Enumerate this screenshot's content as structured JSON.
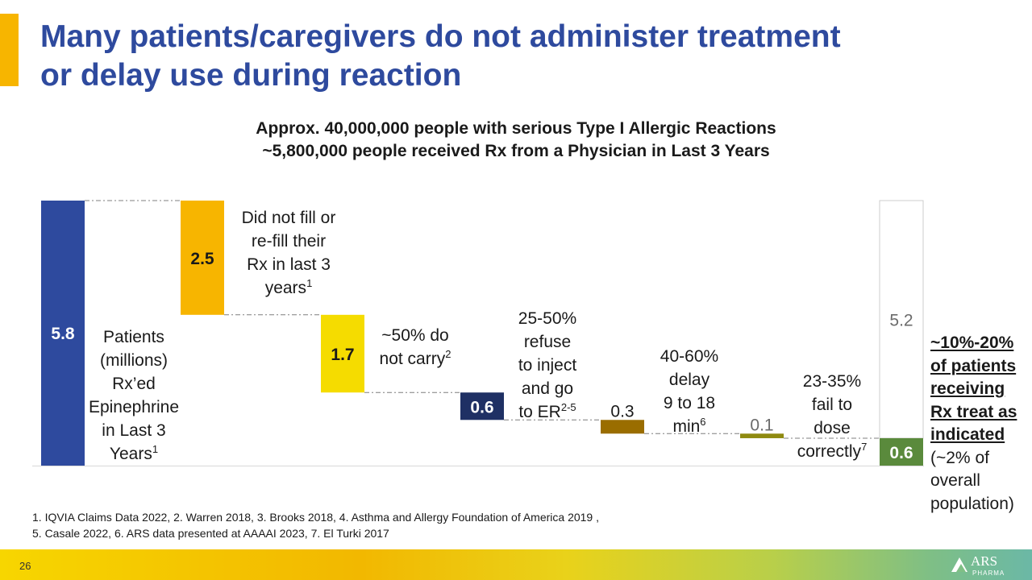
{
  "slide": {
    "title_line1": "Many patients/caregivers do not administer treatment",
    "title_line2": "or delay use during reaction",
    "subtitle_line1": "Approx. 40,000,000 people with serious Type I Allergic Reactions",
    "subtitle_line2": "~5,800,000 people received Rx from a Physician in Last 3 Years",
    "page_number": "26",
    "logo_text_top": "ARS",
    "logo_text_bottom": "PHARMA",
    "colors": {
      "title": "#2e4a9e",
      "accent": "#f7b500",
      "underline_text": "#1a1a1a"
    }
  },
  "chart_data": {
    "type": "waterfall",
    "title": "",
    "ylim": [
      0,
      5.8
    ],
    "bars": [
      {
        "label": "5.8",
        "start": 0,
        "end": 5.8,
        "color": "#2e4a9e",
        "label_color": "#ffffff",
        "text": [
          "Patients",
          "(millions)",
          "Rx’ed",
          "Epinephrine",
          "in Last 3",
          "Years"
        ],
        "sup": "1"
      },
      {
        "label": "2.5",
        "start": 3.3,
        "end": 5.8,
        "color": "#f7b500",
        "label_color": "#1a1a1a",
        "text": [
          "Did not fill or",
          "re-fill their",
          "Rx in last 3",
          "years"
        ],
        "sup": "1"
      },
      {
        "label": "1.7",
        "start": 1.6,
        "end": 3.3,
        "color": "#f5dc00",
        "label_color": "#1a1a1a",
        "text": [
          "~50% do",
          "not carry"
        ],
        "sup": "2"
      },
      {
        "label": "0.6",
        "start": 1.0,
        "end": 1.6,
        "color": "#1f3064",
        "label_color": "#ffffff",
        "text": [
          "25-50%",
          "refuse",
          "to inject",
          "and go",
          "to ER"
        ],
        "sup": "2-5"
      },
      {
        "label": "0.3",
        "start": 0.7,
        "end": 1.0,
        "color": "#9a6d00",
        "label_color": "#1a1a1a",
        "text": [
          "40-60%",
          "delay",
          "9 to 18",
          "min"
        ],
        "sup": "6"
      },
      {
        "label": "0.1",
        "start": 0.6,
        "end": 0.7,
        "color": "#8f8a10",
        "label_color": "#6b6b6b",
        "text": [
          "23-35%",
          "fail to",
          "dose",
          "correctly"
        ],
        "sup": "7"
      },
      {
        "label": "0.6",
        "start": 0,
        "end": 0.6,
        "color": "#5a8a3c",
        "label_color": "#ffffff",
        "text": [],
        "sup": ""
      }
    ],
    "remainder": {
      "label": "5.2",
      "start": 0.6,
      "end": 5.8,
      "color": "#ffffff",
      "label_color": "#6b6b6b"
    }
  },
  "side_note": {
    "line1": "~10%-20%",
    "line2": "of patients",
    "line3": "receiving",
    "line4": "Rx treat as",
    "line5": "indicated",
    "line6": "(~2% of",
    "line7": "overall",
    "line8": "population)"
  },
  "footnotes": {
    "line1": "1. IQVIA Claims Data 2022, 2. Warren 2018, 3. Brooks 2018, 4. Asthma and Allergy Foundation of America 2019 ,",
    "line2": "5. Casale 2022, 6. ARS data presented at AAAAI 2023, 7. El Turki 2017"
  }
}
